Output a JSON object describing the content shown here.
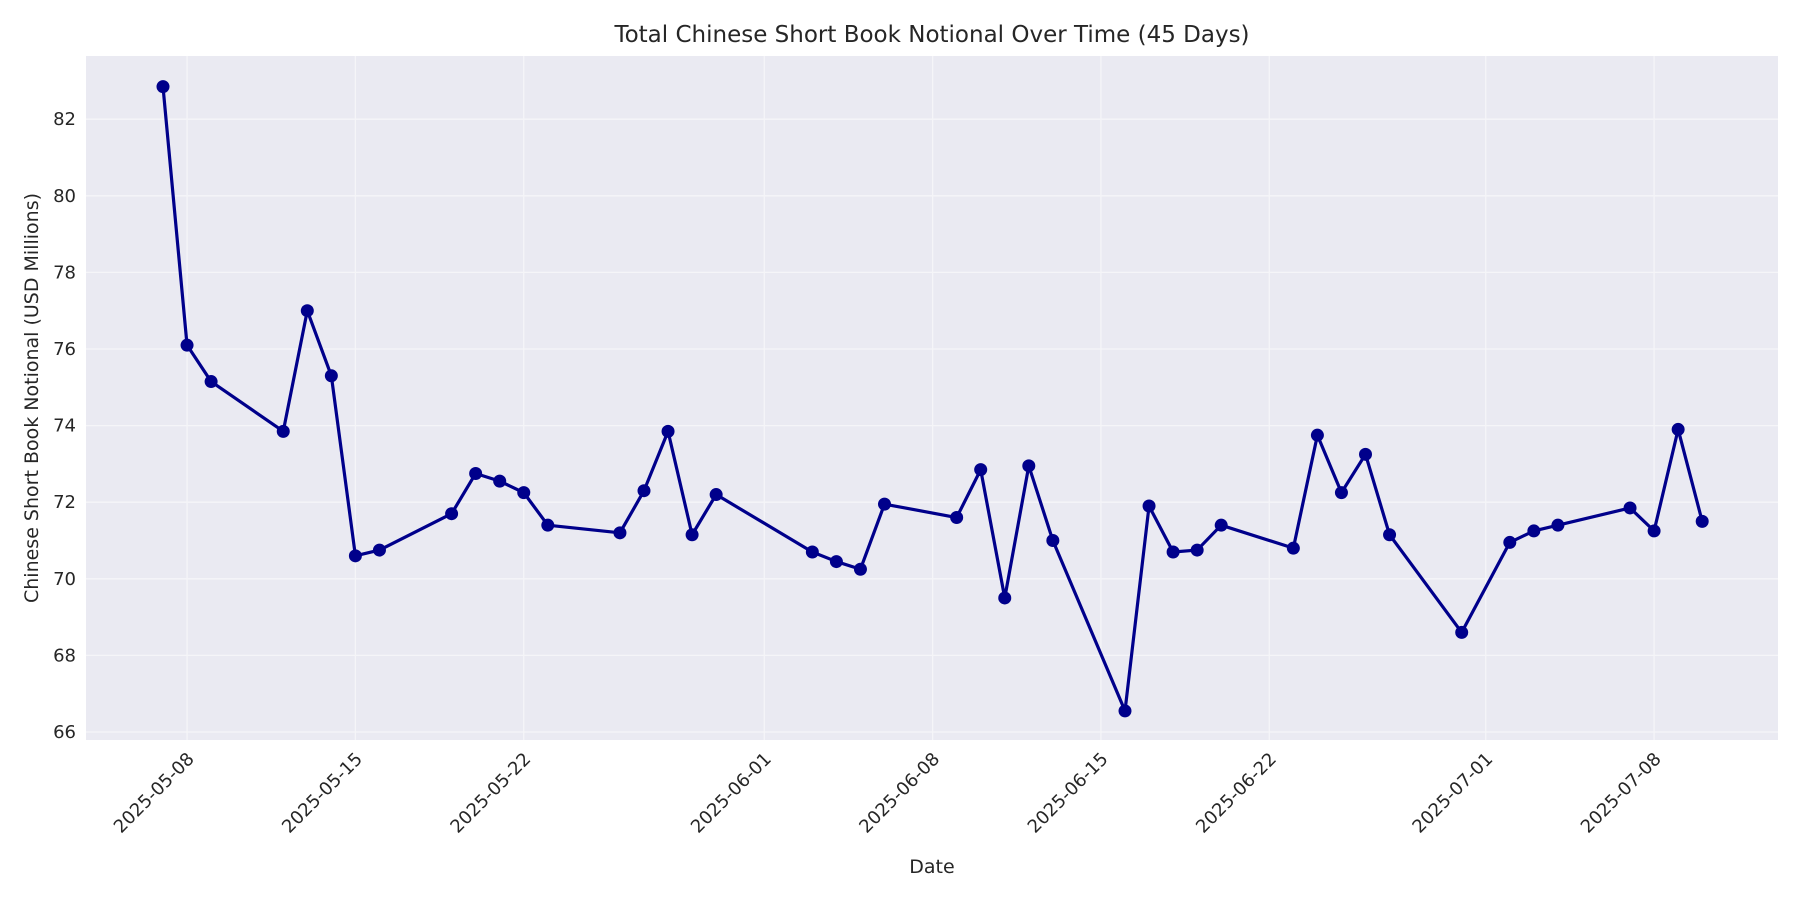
{
  "chart_data": {
    "type": "line",
    "title": "Total Chinese Short Book Notional Over Time (45 Days)",
    "xlabel": "Date",
    "ylabel": "Chinese Short Book Notional (USD Millions)",
    "ylim": [
      65.8,
      83.6
    ],
    "xlim": [
      "2025-05-04",
      "2025-07-13"
    ],
    "grid": true,
    "legend": null,
    "x_ticks": [
      "2025-05-08",
      "2025-05-15",
      "2025-05-22",
      "2025-06-01",
      "2025-06-08",
      "2025-06-15",
      "2025-06-22",
      "2025-07-01",
      "2025-07-08"
    ],
    "y_ticks": [
      66,
      68,
      70,
      72,
      74,
      76,
      78,
      80,
      82
    ],
    "series": [
      {
        "name": "Total Chinese Short Book Notional",
        "color": "#00008b",
        "marker": "circle",
        "x": [
          "2025-05-07",
          "2025-05-08",
          "2025-05-09",
          "2025-05-12",
          "2025-05-13",
          "2025-05-14",
          "2025-05-15",
          "2025-05-16",
          "2025-05-19",
          "2025-05-20",
          "2025-05-21",
          "2025-05-22",
          "2025-05-23",
          "2025-05-26",
          "2025-05-27",
          "2025-05-28",
          "2025-05-29",
          "2025-05-30",
          "2025-06-03",
          "2025-06-04",
          "2025-06-05",
          "2025-06-06",
          "2025-06-09",
          "2025-06-10",
          "2025-06-11",
          "2025-06-12",
          "2025-06-13",
          "2025-06-16",
          "2025-06-17",
          "2025-06-18",
          "2025-06-19",
          "2025-06-20",
          "2025-06-23",
          "2025-06-24",
          "2025-06-25",
          "2025-06-26",
          "2025-06-27",
          "2025-06-30",
          "2025-07-02",
          "2025-07-03",
          "2025-07-04",
          "2025-07-07",
          "2025-07-08",
          "2025-07-09",
          "2025-07-10"
        ],
        "values": [
          82.85,
          76.1,
          75.15,
          73.85,
          77.0,
          75.3,
          70.6,
          70.75,
          71.7,
          72.75,
          72.55,
          72.25,
          71.4,
          71.2,
          72.3,
          73.85,
          71.15,
          72.2,
          70.7,
          70.45,
          70.25,
          71.95,
          71.6,
          72.85,
          69.5,
          72.95,
          71.0,
          66.55,
          71.9,
          70.7,
          70.75,
          71.4,
          70.8,
          73.75,
          72.25,
          73.25,
          71.15,
          68.6,
          70.95,
          71.25,
          71.4,
          71.85,
          71.25,
          73.9,
          71.5
        ]
      }
    ]
  },
  "colors": {
    "plot_background": "#eaeaf2",
    "grid": "#f5f5f8",
    "line": "#00008b",
    "text": "#262626"
  }
}
